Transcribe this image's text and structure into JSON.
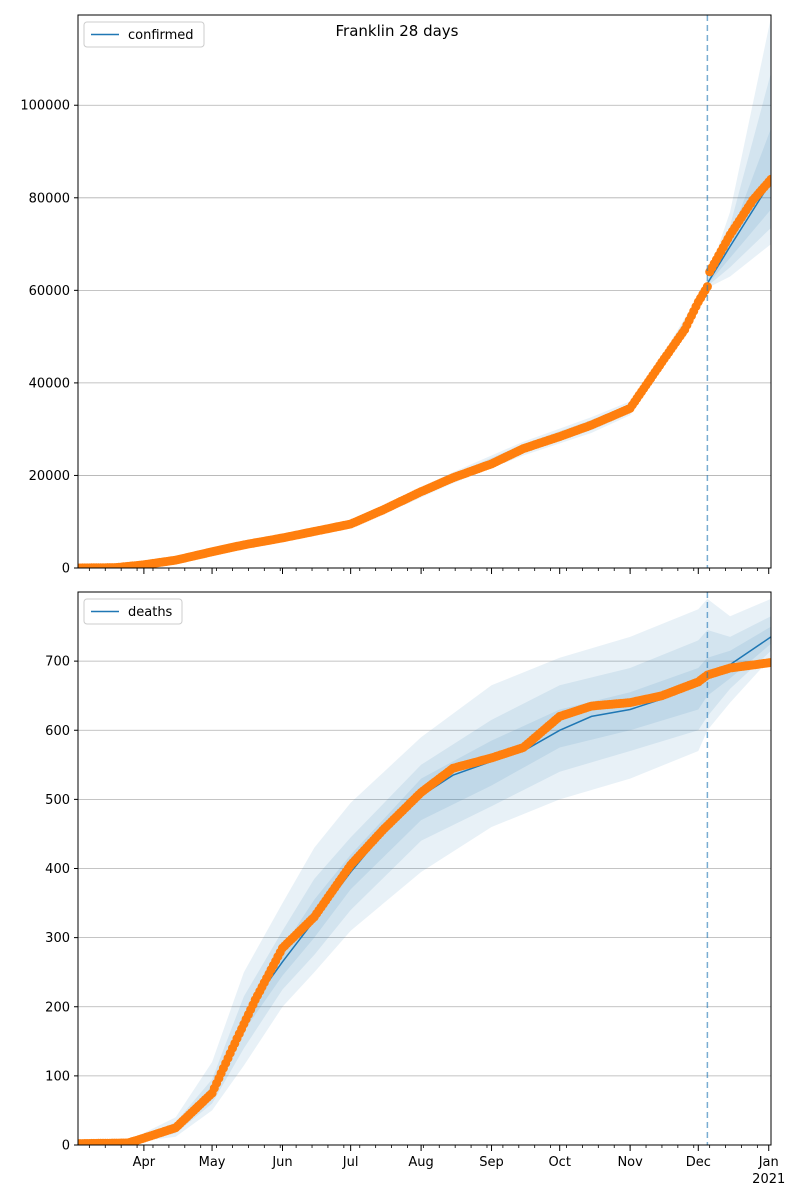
{
  "figure": {
    "title": "Franklin 28 days",
    "x_tick_labels": [
      "Apr",
      "May",
      "Jun",
      "Jul",
      "Aug",
      "Sep",
      "Oct",
      "Nov",
      "Dec",
      "Jan"
    ],
    "x_year_label": "2021"
  },
  "colors": {
    "model_line": "#1f77b4",
    "observed_points": "#ff7f0e",
    "band": "#1f77b4",
    "grid": "#b0b0b0",
    "forecast_line": "#1f77b4"
  },
  "chart_data": [
    {
      "type": "line",
      "name": "confirmed",
      "legend_label": "confirmed",
      "legend_placement": "upper-left",
      "grid": "y",
      "x_range": [
        "2020-03-03",
        "2021-01-02"
      ],
      "forecast_start": "2020-12-05",
      "ylim": [
        0,
        119500
      ],
      "yticks": [
        0,
        20000,
        40000,
        60000,
        80000,
        100000
      ],
      "ytick_labels": [
        "0",
        "20000",
        "40000",
        "60000",
        "80000",
        "100000"
      ],
      "model": {
        "x": [
          "2020-03-03",
          "2020-03-20",
          "2020-04-01",
          "2020-04-15",
          "2020-05-01",
          "2020-05-15",
          "2020-06-01",
          "2020-06-15",
          "2020-07-01",
          "2020-07-15",
          "2020-08-01",
          "2020-08-15",
          "2020-09-01",
          "2020-09-15",
          "2020-10-01",
          "2020-10-15",
          "2020-11-01",
          "2020-11-15",
          "2020-12-01",
          "2020-12-05",
          "2020-12-15",
          "2021-01-02"
        ],
        "y": [
          0,
          100,
          700,
          1700,
          3500,
          5000,
          6500,
          7900,
          9500,
          12500,
          16500,
          19500,
          22500,
          25800,
          28400,
          30900,
          34500,
          44500,
          57500,
          61500,
          69500,
          83500
        ]
      },
      "bands": [
        {
          "x": [
            "2020-07-15",
            "2020-08-15",
            "2020-09-15",
            "2020-10-15",
            "2020-11-01",
            "2020-11-15",
            "2020-12-01",
            "2020-12-05",
            "2020-12-15",
            "2021-01-02"
          ],
          "low": [
            11500,
            18300,
            24300,
            29200,
            33000,
            43200,
            56200,
            60500,
            63000,
            70000
          ],
          "high": [
            13500,
            20700,
            27300,
            32600,
            36000,
            45800,
            58800,
            62500,
            77000,
            119000
          ]
        },
        {
          "x": [
            "2020-07-15",
            "2020-08-15",
            "2020-09-15",
            "2020-10-15",
            "2020-11-01",
            "2020-11-15",
            "2020-12-01",
            "2020-12-05",
            "2020-12-15",
            "2021-01-02"
          ],
          "low": [
            11900,
            18800,
            24800,
            29800,
            33500,
            43600,
            56700,
            60900,
            65000,
            73500
          ],
          "high": [
            13100,
            20200,
            26800,
            32000,
            35500,
            45400,
            58300,
            62100,
            74000,
            107000
          ]
        },
        {
          "x": [
            "2020-07-15",
            "2020-08-15",
            "2020-09-15",
            "2020-10-15",
            "2020-11-01",
            "2020-11-15",
            "2020-12-01",
            "2020-12-05",
            "2020-12-15",
            "2021-01-02"
          ],
          "low": [
            12200,
            19100,
            25200,
            30300,
            33900,
            44000,
            57000,
            61200,
            67000,
            77500
          ],
          "high": [
            12800,
            19900,
            26400,
            31500,
            35100,
            45000,
            58000,
            61800,
            71500,
            95000
          ]
        }
      ],
      "observed": {
        "x": [
          "2020-03-03",
          "2020-03-20",
          "2020-04-01",
          "2020-04-15",
          "2020-05-01",
          "2020-05-15",
          "2020-06-01",
          "2020-06-15",
          "2020-07-01",
          "2020-07-15",
          "2020-08-01",
          "2020-08-15",
          "2020-09-01",
          "2020-09-15",
          "2020-10-01",
          "2020-10-15",
          "2020-11-01",
          "2020-11-15",
          "2020-11-25",
          "2020-12-01",
          "2020-12-05",
          "2020-12-06",
          "2020-12-15",
          "2020-12-25",
          "2021-01-02"
        ],
        "y": [
          0,
          100,
          700,
          1700,
          3500,
          5000,
          6500,
          7900,
          9500,
          12500,
          16500,
          19500,
          22500,
          25800,
          28400,
          30900,
          34500,
          44500,
          51500,
          57500,
          60800,
          64000,
          72000,
          79500,
          84000
        ]
      }
    },
    {
      "type": "line",
      "name": "deaths",
      "legend_label": "deaths",
      "legend_placement": "upper-left",
      "grid": "y",
      "x_range": [
        "2020-03-03",
        "2021-01-02"
      ],
      "forecast_start": "2020-12-05",
      "ylim": [
        0,
        800
      ],
      "yticks": [
        0,
        100,
        200,
        300,
        400,
        500,
        600,
        700
      ],
      "ytick_labels": [
        "0",
        "100",
        "200",
        "300",
        "400",
        "500",
        "600",
        "700"
      ],
      "model": {
        "x": [
          "2020-03-03",
          "2020-03-25",
          "2020-04-01",
          "2020-04-15",
          "2020-05-01",
          "2020-05-10",
          "2020-05-20",
          "2020-06-01",
          "2020-06-15",
          "2020-07-01",
          "2020-07-15",
          "2020-08-01",
          "2020-08-15",
          "2020-09-01",
          "2020-09-15",
          "2020-10-01",
          "2020-10-15",
          "2020-11-01",
          "2020-11-15",
          "2020-12-01",
          "2020-12-05",
          "2020-12-15",
          "2021-01-02"
        ],
        "y": [
          2,
          3,
          10,
          25,
          75,
          140,
          210,
          265,
          325,
          395,
          450,
          505,
          535,
          555,
          570,
          600,
          620,
          630,
          645,
          665,
          680,
          695,
          735
        ]
      },
      "bands": [
        {
          "x": [
            "2020-03-25",
            "2020-04-15",
            "2020-05-01",
            "2020-05-15",
            "2020-06-01",
            "2020-06-15",
            "2020-07-01",
            "2020-08-01",
            "2020-09-01",
            "2020-10-01",
            "2020-11-01",
            "2020-12-01",
            "2020-12-05",
            "2020-12-15",
            "2021-01-02"
          ],
          "low": [
            3,
            12,
            50,
            115,
            200,
            250,
            310,
            395,
            460,
            500,
            530,
            570,
            600,
            640,
            705
          ],
          "high": [
            6,
            40,
            120,
            250,
            350,
            430,
            495,
            590,
            665,
            705,
            735,
            775,
            790,
            765,
            790
          ]
        },
        {
          "x": [
            "2020-03-25",
            "2020-04-15",
            "2020-05-01",
            "2020-05-15",
            "2020-06-01",
            "2020-06-15",
            "2020-07-01",
            "2020-08-01",
            "2020-09-01",
            "2020-10-01",
            "2020-11-01",
            "2020-12-01",
            "2020-12-05",
            "2020-12-15",
            "2021-01-02"
          ],
          "low": [
            3,
            17,
            60,
            140,
            225,
            275,
            340,
            440,
            490,
            540,
            570,
            600,
            620,
            660,
            715
          ],
          "high": [
            5,
            33,
            95,
            215,
            310,
            385,
            445,
            550,
            615,
            665,
            690,
            730,
            745,
            735,
            765
          ]
        },
        {
          "x": [
            "2020-03-25",
            "2020-04-15",
            "2020-05-01",
            "2020-05-15",
            "2020-06-01",
            "2020-06-15",
            "2020-07-01",
            "2020-08-01",
            "2020-09-01",
            "2020-10-01",
            "2020-11-01",
            "2020-12-01",
            "2020-12-05",
            "2020-12-15",
            "2021-01-02"
          ],
          "low": [
            3,
            20,
            68,
            165,
            245,
            300,
            370,
            470,
            520,
            575,
            600,
            630,
            650,
            675,
            725
          ],
          "high": [
            4,
            30,
            85,
            190,
            285,
            355,
            420,
            530,
            585,
            630,
            655,
            690,
            705,
            715,
            750
          ]
        }
      ],
      "observed": {
        "x": [
          "2020-03-03",
          "2020-03-25",
          "2020-04-01",
          "2020-04-15",
          "2020-05-01",
          "2020-05-10",
          "2020-05-20",
          "2020-06-01",
          "2020-06-15",
          "2020-07-01",
          "2020-07-15",
          "2020-08-01",
          "2020-08-15",
          "2020-09-01",
          "2020-09-15",
          "2020-10-01",
          "2020-10-15",
          "2020-11-01",
          "2020-11-15",
          "2020-12-01",
          "2020-12-05",
          "2020-12-15",
          "2021-01-02"
        ],
        "y": [
          2,
          3,
          10,
          25,
          75,
          140,
          210,
          285,
          330,
          405,
          455,
          510,
          545,
          560,
          575,
          620,
          635,
          640,
          650,
          670,
          680,
          690,
          698
        ]
      }
    }
  ]
}
